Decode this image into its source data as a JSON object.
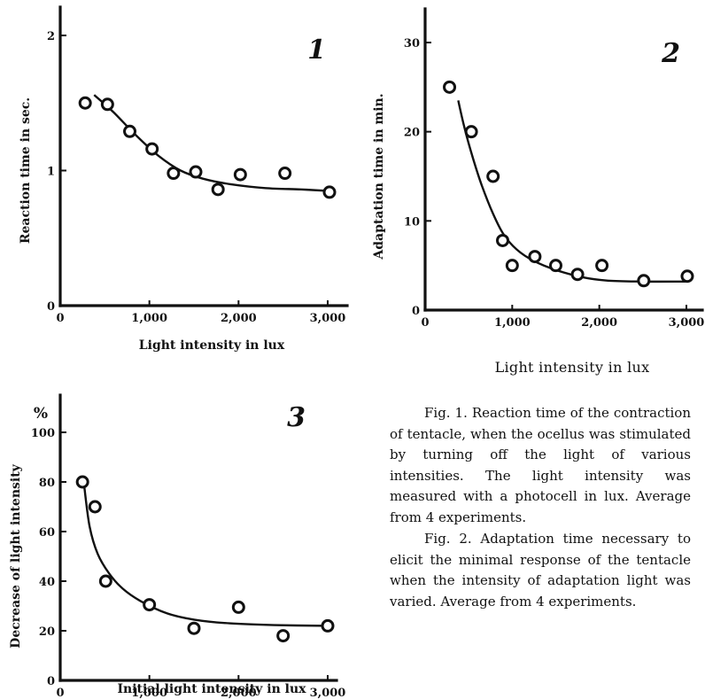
{
  "chart_data": [
    {
      "type": "scatter",
      "panel_label": "1",
      "xlabel": "Light intensity in lux",
      "ylabel": "Reaction time in sec.",
      "xlim": [
        0,
        3000
      ],
      "ylim": [
        0,
        2
      ],
      "xticks": [
        0,
        1000,
        2000,
        3000
      ],
      "xtick_labels": [
        "0",
        "1,000",
        "2,000",
        "3,000"
      ],
      "yticks": [
        0,
        1,
        2
      ],
      "ytick_labels": [
        "0",
        "1",
        "2"
      ],
      "points": [
        {
          "x": 280,
          "y": 1.5
        },
        {
          "x": 530,
          "y": 1.49
        },
        {
          "x": 780,
          "y": 1.29
        },
        {
          "x": 1030,
          "y": 1.16
        },
        {
          "x": 1270,
          "y": 0.98
        },
        {
          "x": 1520,
          "y": 0.99
        },
        {
          "x": 1770,
          "y": 0.86
        },
        {
          "x": 2020,
          "y": 0.97
        },
        {
          "x": 2520,
          "y": 0.98
        },
        {
          "x": 3020,
          "y": 0.84
        }
      ],
      "curve": [
        {
          "x": 380,
          "y": 1.56
        },
        {
          "x": 600,
          "y": 1.43
        },
        {
          "x": 850,
          "y": 1.26
        },
        {
          "x": 1100,
          "y": 1.11
        },
        {
          "x": 1350,
          "y": 1.0
        },
        {
          "x": 1600,
          "y": 0.94
        },
        {
          "x": 1900,
          "y": 0.9
        },
        {
          "x": 2300,
          "y": 0.87
        },
        {
          "x": 2700,
          "y": 0.86
        },
        {
          "x": 3000,
          "y": 0.85
        }
      ]
    },
    {
      "type": "scatter",
      "panel_label": "2",
      "xlabel": "Light intensity in lux",
      "ylabel": "Adaptation time in min.",
      "xlim": [
        0,
        3000
      ],
      "ylim": [
        0,
        30
      ],
      "xticks": [
        0,
        1000,
        2000,
        3000
      ],
      "xtick_labels": [
        "0",
        "1,000",
        "2,000",
        "3,000"
      ],
      "yticks": [
        0,
        10,
        20,
        30
      ],
      "ytick_labels": [
        "0",
        "10",
        "20",
        "30"
      ],
      "points": [
        {
          "x": 280,
          "y": 25
        },
        {
          "x": 530,
          "y": 20
        },
        {
          "x": 780,
          "y": 15
        },
        {
          "x": 890,
          "y": 7.8
        },
        {
          "x": 1000,
          "y": 5
        },
        {
          "x": 1260,
          "y": 6
        },
        {
          "x": 1500,
          "y": 5
        },
        {
          "x": 1750,
          "y": 4
        },
        {
          "x": 2030,
          "y": 5
        },
        {
          "x": 2510,
          "y": 3.3
        },
        {
          "x": 3010,
          "y": 3.8
        }
      ],
      "curve": [
        {
          "x": 380,
          "y": 23.5
        },
        {
          "x": 450,
          "y": 20.5
        },
        {
          "x": 550,
          "y": 17
        },
        {
          "x": 650,
          "y": 14
        },
        {
          "x": 780,
          "y": 10.8
        },
        {
          "x": 900,
          "y": 8.5
        },
        {
          "x": 1050,
          "y": 6.8
        },
        {
          "x": 1250,
          "y": 5.5
        },
        {
          "x": 1500,
          "y": 4.5
        },
        {
          "x": 1800,
          "y": 3.7
        },
        {
          "x": 2100,
          "y": 3.3
        },
        {
          "x": 2500,
          "y": 3.2
        },
        {
          "x": 3000,
          "y": 3.2
        }
      ]
    },
    {
      "type": "scatter",
      "panel_label": "3",
      "xlabel": "Initial light intensity in lux",
      "ylabel": "Decrease of light intensity",
      "yunit": "%",
      "xlim": [
        0,
        3000
      ],
      "ylim": [
        0,
        100
      ],
      "xticks": [
        0,
        1000,
        2000,
        3000
      ],
      "xtick_labels": [
        "0",
        "1,000",
        "2,000",
        "3,000"
      ],
      "yticks": [
        0,
        20,
        40,
        60,
        80,
        100
      ],
      "ytick_labels": [
        "0",
        "20",
        "40",
        "60",
        "80",
        "100"
      ],
      "points": [
        {
          "x": 250,
          "y": 80
        },
        {
          "x": 390,
          "y": 70
        },
        {
          "x": 510,
          "y": 40
        },
        {
          "x": 1000,
          "y": 30.5
        },
        {
          "x": 1500,
          "y": 21
        },
        {
          "x": 2000,
          "y": 29.5
        },
        {
          "x": 2500,
          "y": 18
        },
        {
          "x": 3000,
          "y": 22
        }
      ],
      "curve": [
        {
          "x": 270,
          "y": 78
        },
        {
          "x": 330,
          "y": 62
        },
        {
          "x": 420,
          "y": 51
        },
        {
          "x": 550,
          "y": 43
        },
        {
          "x": 700,
          "y": 37
        },
        {
          "x": 900,
          "y": 32
        },
        {
          "x": 1200,
          "y": 27
        },
        {
          "x": 1500,
          "y": 24.5
        },
        {
          "x": 1900,
          "y": 23
        },
        {
          "x": 2400,
          "y": 22.3
        },
        {
          "x": 3000,
          "y": 22
        }
      ]
    }
  ],
  "figure2_xlabel": "Light intensity in lux",
  "caption": {
    "fig1": "Fig. 1.  Reaction time of the contraction of tentacle, when the ocellus was stimulated by turning off the light of various intensities. The light intensity was measured with a photocell in lux.  Average from 4 experiments.",
    "fig2": "Fig. 2.  Adaptation time necessary to elicit the minimal response of the tentacle when the intensity of adaptation light was varied.  Average from 4 experiments."
  }
}
